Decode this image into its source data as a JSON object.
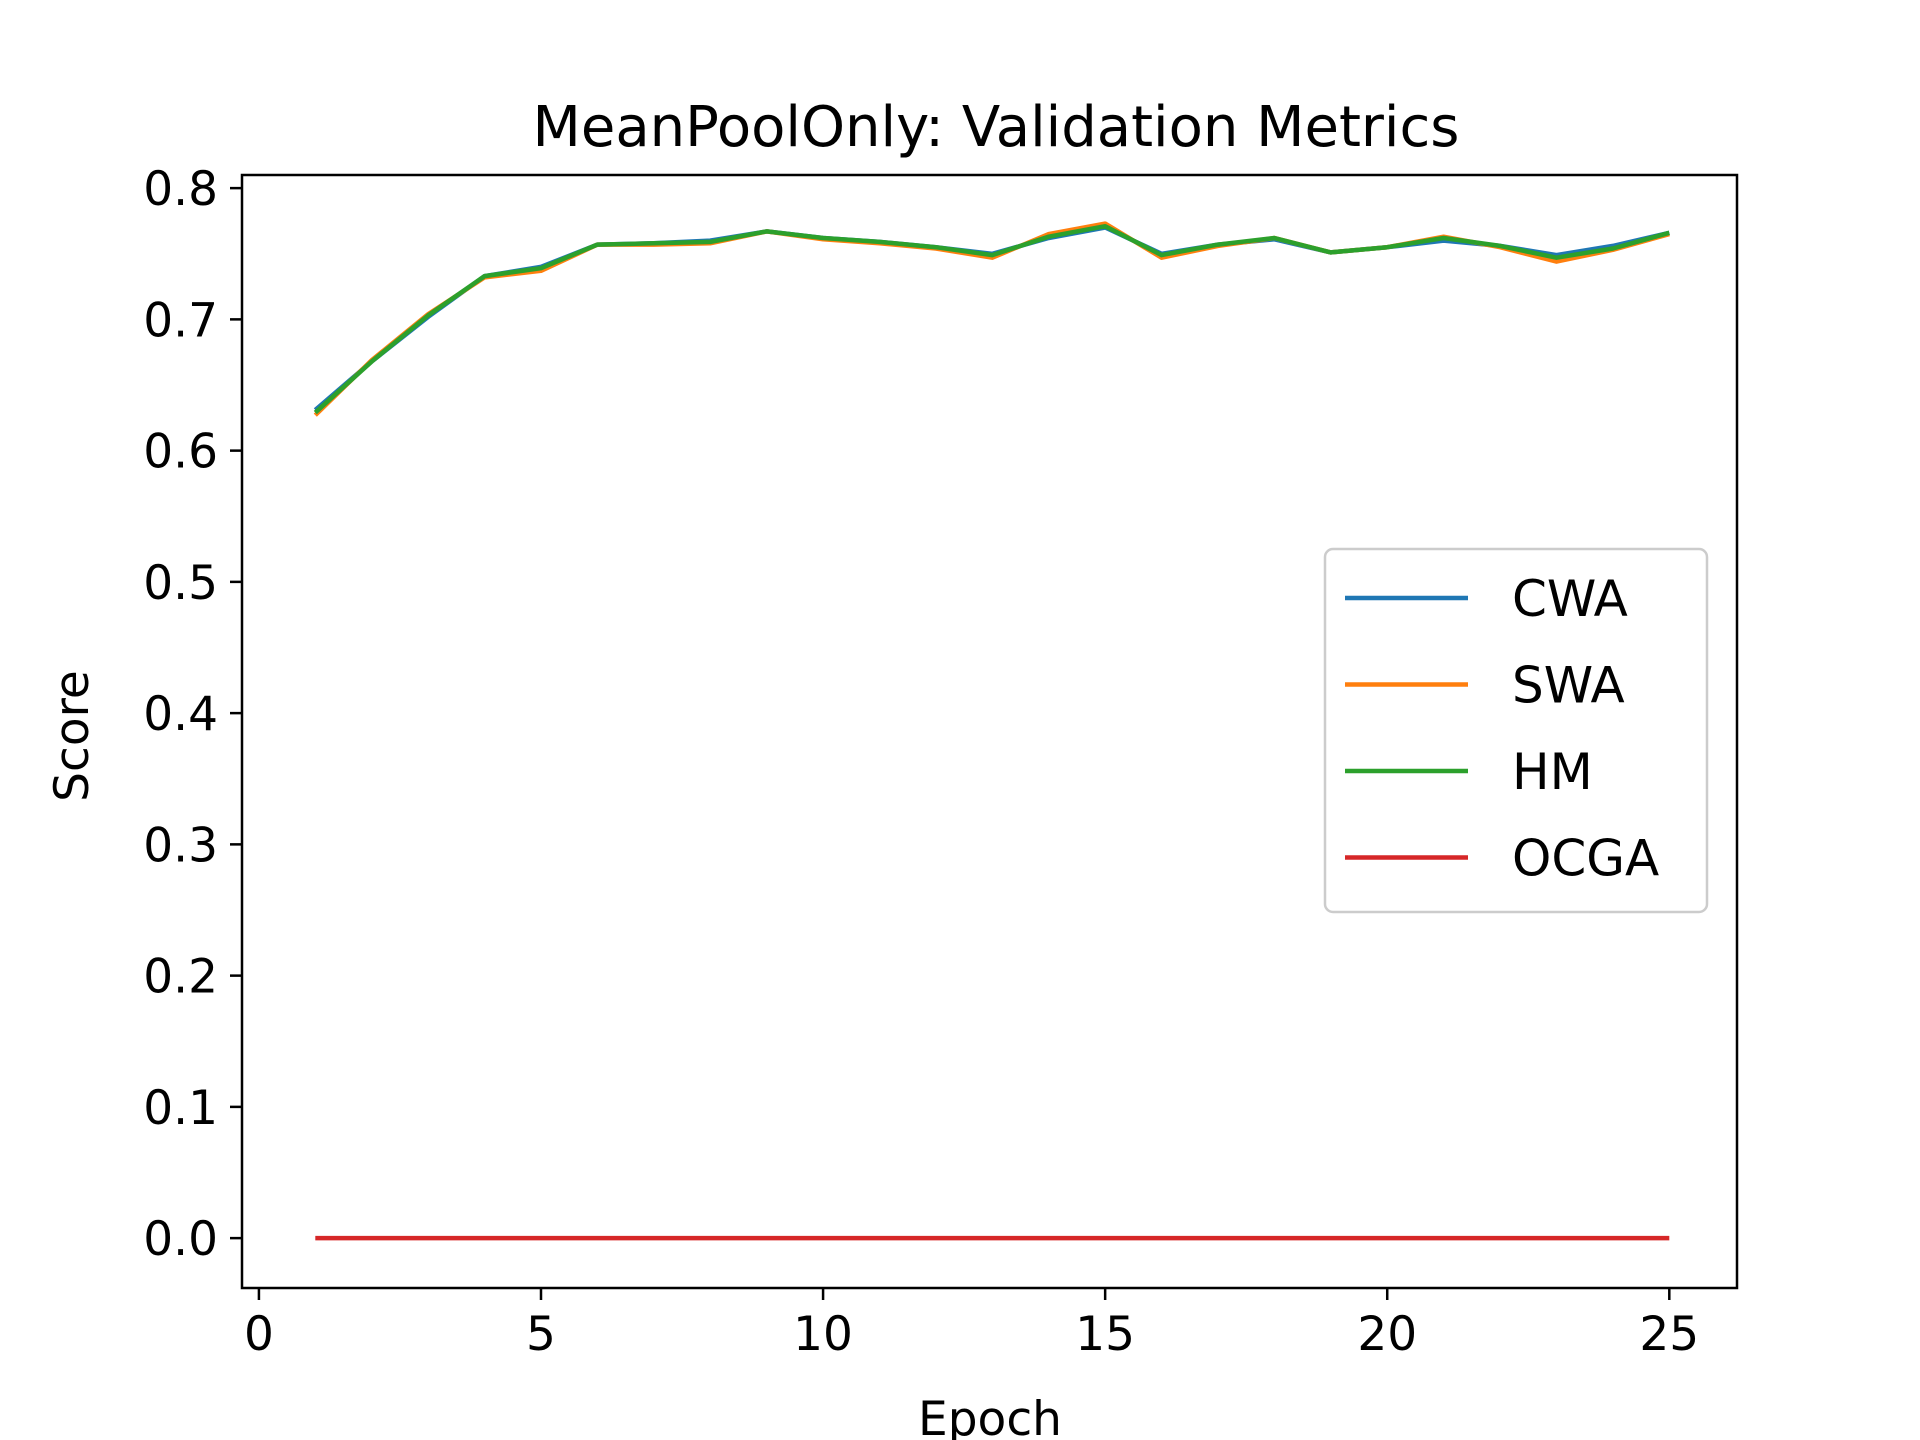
{
  "chart_data": {
    "type": "line",
    "title": "MeanPoolOnly: Validation Metrics",
    "xlabel": "Epoch",
    "ylabel": "Score",
    "xlim": [
      -0.3,
      26.2
    ],
    "ylim": [
      -0.038,
      0.81
    ],
    "xticks": [
      0,
      5,
      10,
      15,
      20,
      25
    ],
    "xtick_labels": [
      "0",
      "5",
      "10",
      "15",
      "20",
      "25"
    ],
    "yticks": [
      0.0,
      0.1,
      0.2,
      0.3,
      0.4,
      0.5,
      0.6,
      0.7,
      0.8
    ],
    "ytick_labels": [
      "0.0",
      "0.1",
      "0.2",
      "0.3",
      "0.4",
      "0.5",
      "0.6",
      "0.7",
      "0.8"
    ],
    "grid": false,
    "legend_position": "center-right",
    "x": [
      1,
      2,
      3,
      4,
      5,
      6,
      7,
      8,
      9,
      10,
      11,
      12,
      13,
      14,
      15,
      16,
      17,
      18,
      19,
      20,
      21,
      22,
      23,
      24,
      25
    ],
    "series": [
      {
        "name": "CWA",
        "color": "#1f77b4",
        "values": [
          0.631,
          0.668,
          0.702,
          0.733,
          0.74,
          0.757,
          0.758,
          0.76,
          0.767,
          0.762,
          0.759,
          0.755,
          0.75,
          0.762,
          0.77,
          0.75,
          0.757,
          0.761,
          0.751,
          0.755,
          0.76,
          0.756,
          0.749,
          0.756,
          0.766
        ]
      },
      {
        "name": "SWA",
        "color": "#ff7f0e",
        "values": [
          0.627,
          0.669,
          0.704,
          0.732,
          0.737,
          0.757,
          0.757,
          0.758,
          0.767,
          0.761,
          0.758,
          0.754,
          0.747,
          0.765,
          0.773,
          0.747,
          0.756,
          0.762,
          0.751,
          0.755,
          0.763,
          0.755,
          0.744,
          0.753,
          0.765
        ]
      },
      {
        "name": "HM",
        "color": "#2ca02c",
        "values": [
          0.629,
          0.668,
          0.703,
          0.733,
          0.739,
          0.757,
          0.758,
          0.759,
          0.767,
          0.762,
          0.759,
          0.755,
          0.749,
          0.763,
          0.771,
          0.749,
          0.757,
          0.762,
          0.751,
          0.755,
          0.762,
          0.756,
          0.747,
          0.754,
          0.766
        ]
      },
      {
        "name": "OCGA",
        "color": "#d62728",
        "values": [
          0,
          0,
          0,
          0,
          0,
          0,
          0,
          0,
          0,
          0,
          0,
          0,
          0,
          0,
          0,
          0,
          0,
          0,
          0,
          0,
          0,
          0,
          0,
          0,
          0
        ]
      }
    ]
  }
}
